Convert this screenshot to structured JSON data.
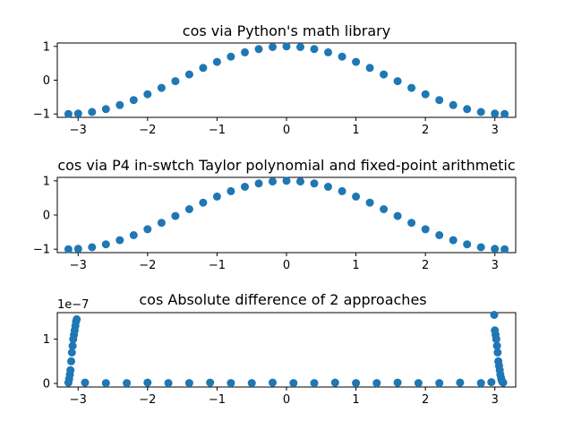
{
  "chart_data": [
    {
      "type": "scatter",
      "title": "cos via Python's math library",
      "xlim": [
        -3.3,
        3.3
      ],
      "ylim": [
        -1.1,
        1.1
      ],
      "xticks": [
        -3,
        -2,
        -1,
        0,
        1,
        2,
        3
      ],
      "xtick_labels": [
        "−3",
        "−2",
        "−1",
        "0",
        "1",
        "2",
        "3"
      ],
      "yticks": [
        -1,
        0,
        1
      ],
      "ytick_labels": [
        "−1",
        "0",
        "1"
      ],
      "color": "#1f77b4",
      "series": [
        {
          "x": [
            -3.14,
            -3.0,
            -2.8,
            -2.6,
            -2.4,
            -2.2,
            -2.0,
            -1.8,
            -1.6,
            -1.4,
            -1.2,
            -1.0,
            -0.8,
            -0.6,
            -0.4,
            -0.2,
            0.0,
            0.2,
            0.4,
            0.6,
            0.8,
            1.0,
            1.2,
            1.4,
            1.6,
            1.8,
            2.0,
            2.2,
            2.4,
            2.6,
            2.8,
            3.0,
            3.14
          ],
          "y": [
            -1.0,
            -0.99,
            -0.942,
            -0.857,
            -0.737,
            -0.589,
            -0.416,
            -0.227,
            -0.029,
            0.17,
            0.362,
            0.54,
            0.697,
            0.825,
            0.921,
            0.98,
            1.0,
            0.98,
            0.921,
            0.825,
            0.697,
            0.54,
            0.362,
            0.17,
            -0.029,
            -0.227,
            -0.416,
            -0.589,
            -0.737,
            -0.857,
            -0.942,
            -0.99,
            -1.0
          ]
        }
      ]
    },
    {
      "type": "scatter",
      "title": "cos via P4 in-swtch Taylor polynomial and fixed-point arithmetic",
      "xlim": [
        -3.3,
        3.3
      ],
      "ylim": [
        -1.1,
        1.1
      ],
      "xticks": [
        -3,
        -2,
        -1,
        0,
        1,
        2,
        3
      ],
      "xtick_labels": [
        "−3",
        "−2",
        "−1",
        "0",
        "1",
        "2",
        "3"
      ],
      "yticks": [
        -1,
        0,
        1
      ],
      "ytick_labels": [
        "−1",
        "0",
        "1"
      ],
      "color": "#1f77b4",
      "series": [
        {
          "x": [
            -3.14,
            -3.0,
            -2.8,
            -2.6,
            -2.4,
            -2.2,
            -2.0,
            -1.8,
            -1.6,
            -1.4,
            -1.2,
            -1.0,
            -0.8,
            -0.6,
            -0.4,
            -0.2,
            0.0,
            0.2,
            0.4,
            0.6,
            0.8,
            1.0,
            1.2,
            1.4,
            1.6,
            1.8,
            2.0,
            2.2,
            2.4,
            2.6,
            2.8,
            3.0,
            3.14
          ],
          "y": [
            -1.0,
            -0.99,
            -0.942,
            -0.857,
            -0.737,
            -0.589,
            -0.416,
            -0.227,
            -0.029,
            0.17,
            0.362,
            0.54,
            0.697,
            0.825,
            0.921,
            0.98,
            1.0,
            0.98,
            0.921,
            0.825,
            0.697,
            0.54,
            0.362,
            0.17,
            -0.029,
            -0.227,
            -0.416,
            -0.589,
            -0.737,
            -0.857,
            -0.942,
            -0.99,
            -1.0
          ]
        }
      ]
    },
    {
      "type": "scatter",
      "title": "cos Absolute difference of 2 approaches",
      "offset_label": "1e−7",
      "xlim": [
        -3.3,
        3.3
      ],
      "ylim": [
        -0.08,
        1.6
      ],
      "xticks": [
        -3,
        -2,
        -1,
        0,
        1,
        2,
        3
      ],
      "xtick_labels": [
        "−3",
        "−2",
        "−1",
        "0",
        "1",
        "2",
        "3"
      ],
      "yticks": [
        0,
        1
      ],
      "ytick_labels": [
        "0",
        "1"
      ],
      "color": "#1f77b4",
      "series": [
        {
          "x": [
            -3.14,
            -3.13,
            -3.12,
            -3.11,
            -3.1,
            -3.09,
            -3.08,
            -3.07,
            -3.06,
            -3.05,
            -3.04,
            -3.03,
            -3.02,
            -2.9,
            -2.6,
            -2.3,
            -2.0,
            -1.7,
            -1.4,
            -1.1,
            -0.8,
            -0.5,
            -0.2,
            0.1,
            0.4,
            0.7,
            1.0,
            1.3,
            1.6,
            1.9,
            2.2,
            2.5,
            2.8,
            2.95,
            2.99,
            3.0,
            3.01,
            3.02,
            3.03,
            3.04,
            3.05,
            3.06,
            3.07,
            3.08,
            3.09,
            3.1,
            3.11,
            3.12
          ],
          "y": [
            0.02,
            0.1,
            0.2,
            0.3,
            0.5,
            0.7,
            0.85,
            1.0,
            1.1,
            1.2,
            1.3,
            1.4,
            1.45,
            0.02,
            0.01,
            0.01,
            0.02,
            0.01,
            0.01,
            0.02,
            0.01,
            0.01,
            0.02,
            0.01,
            0.01,
            0.02,
            0.01,
            0.01,
            0.02,
            0.01,
            0.01,
            0.02,
            0.01,
            0.03,
            1.55,
            1.2,
            1.1,
            1.0,
            0.85,
            0.7,
            0.5,
            0.4,
            0.3,
            0.2,
            0.12,
            0.06,
            0.03,
            0.02
          ]
        }
      ]
    }
  ]
}
